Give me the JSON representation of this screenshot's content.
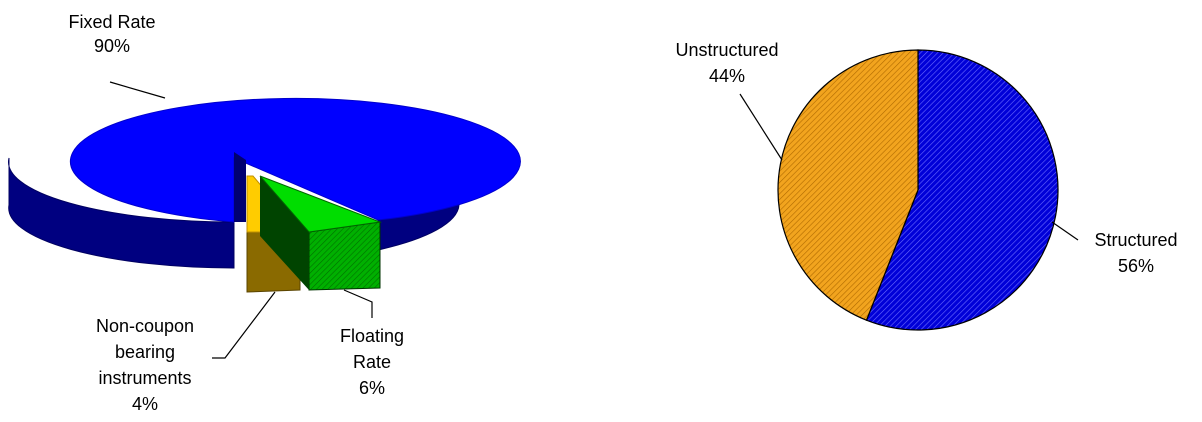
{
  "chart_data": [
    {
      "type": "pie",
      "style": "3d-exploded",
      "title": "",
      "slices": [
        {
          "label_lines": [
            "Fixed Rate"
          ],
          "value": 90,
          "value_label": "90%",
          "color": "#0000ff",
          "side_color": "#000080"
        },
        {
          "label_lines": [
            "Floating",
            "Rate"
          ],
          "value": 6,
          "value_label": "6%",
          "color": "#00cc00",
          "side_color": "#006600"
        },
        {
          "label_lines": [
            "Non-coupon",
            "bearing",
            "instruments"
          ],
          "value": 4,
          "value_label": "4%",
          "color": "#ffcc00",
          "side_color": "#806600"
        }
      ]
    },
    {
      "type": "pie",
      "style": "2d-hatched",
      "title": "",
      "slices": [
        {
          "label_lines": [
            "Structured"
          ],
          "value": 56,
          "value_label": "56%",
          "color": "#0000cc"
        },
        {
          "label_lines": [
            "Unstructured"
          ],
          "value": 44,
          "value_label": "44%",
          "color": "#f0a020"
        }
      ]
    }
  ]
}
